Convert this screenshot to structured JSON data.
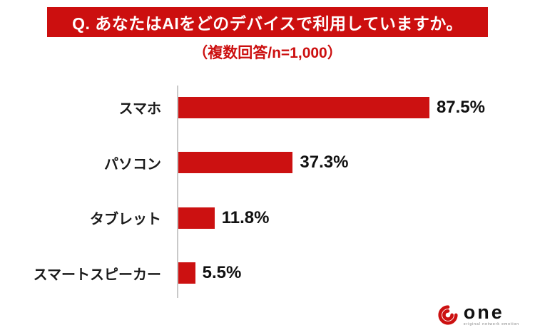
{
  "header": {
    "title": "Q. あなたはAIをどのデバイスで利用していますか。",
    "subtitle": "（複数回答/n=1,000）"
  },
  "colors": {
    "accent_red": "#cc0f0f",
    "bar_red": "#cc1111"
  },
  "chart_data": {
    "type": "bar",
    "orientation": "horizontal",
    "title": "Q. あなたはAIをどのデバイスで利用していますか。",
    "subtitle": "（複数回答/n=1,000）",
    "categories": [
      "スマホ",
      "パソコン",
      "タブレット",
      "スマートスピーカー"
    ],
    "values": [
      87.5,
      37.3,
      11.8,
      5.5
    ],
    "value_labels": [
      "87.5%",
      "37.3%",
      "11.8%",
      "5.5%"
    ],
    "xlim": [
      0,
      100
    ],
    "unit": "%",
    "grid": false,
    "legend": "none",
    "bar_color": "#cc1111"
  },
  "logo": {
    "text": "one",
    "tagline": "original network emotion"
  }
}
